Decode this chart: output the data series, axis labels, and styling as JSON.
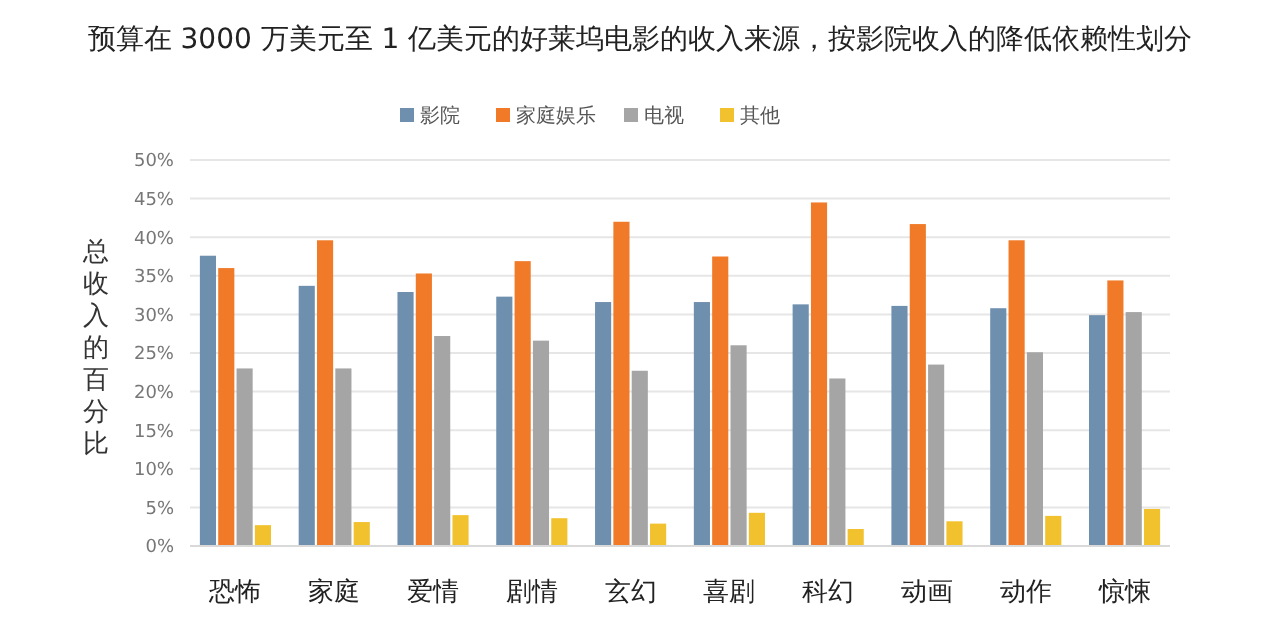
{
  "chart_data": {
    "type": "bar",
    "title": "预算在 3000 万美元至 1 亿美元的好莱坞电影的收入来源，按影院收入的降低依赖性划分",
    "ylabel": "总收入的百分比",
    "categories": [
      "恐怖",
      "家庭",
      "爱情",
      "剧情",
      "玄幻",
      "喜剧",
      "科幻",
      "动画",
      "动作",
      "惊悚"
    ],
    "series": [
      {
        "name": "影院",
        "color": "#6f8fae",
        "values": [
          37.6,
          33.7,
          32.9,
          32.3,
          31.6,
          31.6,
          31.3,
          31.1,
          30.8,
          29.9
        ]
      },
      {
        "name": "家庭娱乐",
        "color": "#f07a28",
        "values": [
          36.0,
          39.6,
          35.3,
          36.9,
          42.0,
          37.5,
          44.5,
          41.7,
          39.6,
          34.4
        ]
      },
      {
        "name": "电视",
        "color": "#a5a5a5",
        "values": [
          23.0,
          23.0,
          27.2,
          26.6,
          22.7,
          26.0,
          21.7,
          23.5,
          25.1,
          30.3
        ]
      },
      {
        "name": "其他",
        "color": "#f2c12e",
        "values": [
          2.7,
          3.1,
          4.0,
          3.6,
          2.9,
          4.3,
          2.2,
          3.2,
          3.9,
          4.8
        ]
      }
    ],
    "ylim": [
      0,
      50
    ],
    "yticks": [
      {
        "value": 0,
        "label": "0%"
      },
      {
        "value": 5,
        "label": "5%"
      },
      {
        "value": 10,
        "label": "10%"
      },
      {
        "value": 15,
        "label": "15%"
      },
      {
        "value": 20,
        "label": "20%"
      },
      {
        "value": 25,
        "label": "25%"
      },
      {
        "value": 30,
        "label": "30%"
      },
      {
        "value": 35,
        "label": "35%"
      },
      {
        "value": 40,
        "label": "40%"
      },
      {
        "value": 45,
        "label": "45%"
      },
      {
        "value": 50,
        "label": "50%"
      }
    ],
    "grid": "y",
    "legend": "top"
  }
}
